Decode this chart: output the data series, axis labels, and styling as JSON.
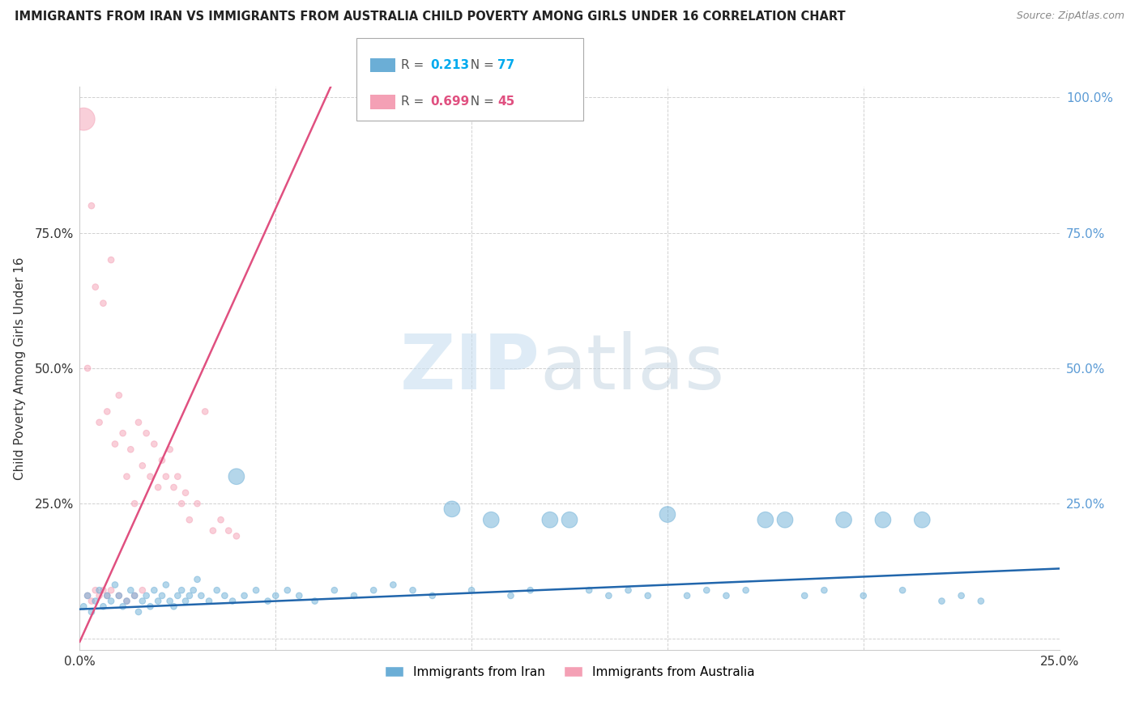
{
  "title": "IMMIGRANTS FROM IRAN VS IMMIGRANTS FROM AUSTRALIA CHILD POVERTY AMONG GIRLS UNDER 16 CORRELATION CHART",
  "source": "Source: ZipAtlas.com",
  "ylabel": "Child Poverty Among Girls Under 16",
  "xlim": [
    0.0,
    0.25
  ],
  "ylim": [
    0.0,
    1.0
  ],
  "iran_color": "#6baed6",
  "iran_edge_color": "#4292c6",
  "australia_color": "#f4a0b5",
  "australia_edge_color": "#e05080",
  "trend_iran_color": "#2166ac",
  "trend_aus_color": "#e05080",
  "iran_R": 0.213,
  "iran_N": 77,
  "australia_R": 0.699,
  "australia_N": 45,
  "watermark_zip": "ZIP",
  "watermark_atlas": "atlas",
  "background_color": "#ffffff",
  "iran_points": [
    [
      0.001,
      0.06
    ],
    [
      0.002,
      0.08
    ],
    [
      0.003,
      0.05
    ],
    [
      0.004,
      0.07
    ],
    [
      0.005,
      0.09
    ],
    [
      0.006,
      0.06
    ],
    [
      0.007,
      0.08
    ],
    [
      0.008,
      0.07
    ],
    [
      0.009,
      0.1
    ],
    [
      0.01,
      0.08
    ],
    [
      0.011,
      0.06
    ],
    [
      0.012,
      0.07
    ],
    [
      0.013,
      0.09
    ],
    [
      0.014,
      0.08
    ],
    [
      0.015,
      0.05
    ],
    [
      0.016,
      0.07
    ],
    [
      0.017,
      0.08
    ],
    [
      0.018,
      0.06
    ],
    [
      0.019,
      0.09
    ],
    [
      0.02,
      0.07
    ],
    [
      0.021,
      0.08
    ],
    [
      0.022,
      0.1
    ],
    [
      0.023,
      0.07
    ],
    [
      0.024,
      0.06
    ],
    [
      0.025,
      0.08
    ],
    [
      0.026,
      0.09
    ],
    [
      0.027,
      0.07
    ],
    [
      0.028,
      0.08
    ],
    [
      0.029,
      0.09
    ],
    [
      0.03,
      0.11
    ],
    [
      0.031,
      0.08
    ],
    [
      0.033,
      0.07
    ],
    [
      0.035,
      0.09
    ],
    [
      0.037,
      0.08
    ],
    [
      0.039,
      0.07
    ],
    [
      0.04,
      0.3
    ],
    [
      0.042,
      0.08
    ],
    [
      0.045,
      0.09
    ],
    [
      0.048,
      0.07
    ],
    [
      0.05,
      0.08
    ],
    [
      0.053,
      0.09
    ],
    [
      0.056,
      0.08
    ],
    [
      0.06,
      0.07
    ],
    [
      0.065,
      0.09
    ],
    [
      0.07,
      0.08
    ],
    [
      0.075,
      0.09
    ],
    [
      0.08,
      0.1
    ],
    [
      0.085,
      0.09
    ],
    [
      0.09,
      0.08
    ],
    [
      0.095,
      0.24
    ],
    [
      0.1,
      0.09
    ],
    [
      0.105,
      0.22
    ],
    [
      0.11,
      0.08
    ],
    [
      0.115,
      0.09
    ],
    [
      0.12,
      0.22
    ],
    [
      0.125,
      0.22
    ],
    [
      0.13,
      0.09
    ],
    [
      0.135,
      0.08
    ],
    [
      0.14,
      0.09
    ],
    [
      0.145,
      0.08
    ],
    [
      0.15,
      0.23
    ],
    [
      0.155,
      0.08
    ],
    [
      0.16,
      0.09
    ],
    [
      0.165,
      0.08
    ],
    [
      0.17,
      0.09
    ],
    [
      0.175,
      0.22
    ],
    [
      0.18,
      0.22
    ],
    [
      0.185,
      0.08
    ],
    [
      0.19,
      0.09
    ],
    [
      0.195,
      0.22
    ],
    [
      0.2,
      0.08
    ],
    [
      0.205,
      0.22
    ],
    [
      0.21,
      0.09
    ],
    [
      0.215,
      0.22
    ],
    [
      0.22,
      0.07
    ],
    [
      0.225,
      0.08
    ],
    [
      0.23,
      0.07
    ]
  ],
  "iran_sizes": [
    30,
    30,
    30,
    30,
    30,
    30,
    30,
    30,
    30,
    30,
    30,
    30,
    30,
    30,
    30,
    30,
    30,
    30,
    30,
    30,
    30,
    30,
    30,
    30,
    30,
    30,
    30,
    30,
    30,
    30,
    30,
    30,
    30,
    30,
    30,
    200,
    30,
    30,
    30,
    30,
    30,
    30,
    30,
    30,
    30,
    30,
    30,
    30,
    30,
    200,
    30,
    200,
    30,
    30,
    200,
    200,
    30,
    30,
    30,
    30,
    200,
    30,
    30,
    30,
    30,
    200,
    200,
    30,
    30,
    200,
    30,
    200,
    30,
    200,
    30,
    30,
    30
  ],
  "aus_points": [
    [
      0.002,
      0.5
    ],
    [
      0.003,
      0.8
    ],
    [
      0.004,
      0.65
    ],
    [
      0.005,
      0.4
    ],
    [
      0.006,
      0.62
    ],
    [
      0.007,
      0.42
    ],
    [
      0.008,
      0.7
    ],
    [
      0.009,
      0.36
    ],
    [
      0.01,
      0.45
    ],
    [
      0.011,
      0.38
    ],
    [
      0.012,
      0.3
    ],
    [
      0.013,
      0.35
    ],
    [
      0.014,
      0.25
    ],
    [
      0.015,
      0.4
    ],
    [
      0.016,
      0.32
    ],
    [
      0.017,
      0.38
    ],
    [
      0.018,
      0.3
    ],
    [
      0.019,
      0.36
    ],
    [
      0.02,
      0.28
    ],
    [
      0.021,
      0.33
    ],
    [
      0.022,
      0.3
    ],
    [
      0.023,
      0.35
    ],
    [
      0.024,
      0.28
    ],
    [
      0.025,
      0.3
    ],
    [
      0.026,
      0.25
    ],
    [
      0.027,
      0.27
    ],
    [
      0.028,
      0.22
    ],
    [
      0.03,
      0.25
    ],
    [
      0.032,
      0.42
    ],
    [
      0.034,
      0.2
    ],
    [
      0.036,
      0.22
    ],
    [
      0.038,
      0.2
    ],
    [
      0.04,
      0.19
    ],
    [
      0.002,
      0.08
    ],
    [
      0.003,
      0.07
    ],
    [
      0.004,
      0.09
    ],
    [
      0.005,
      0.08
    ],
    [
      0.006,
      0.09
    ],
    [
      0.007,
      0.08
    ],
    [
      0.008,
      0.09
    ],
    [
      0.01,
      0.08
    ],
    [
      0.012,
      0.07
    ],
    [
      0.014,
      0.08
    ],
    [
      0.016,
      0.09
    ],
    [
      0.001,
      0.96
    ]
  ],
  "aus_sizes": [
    30,
    30,
    30,
    30,
    30,
    30,
    30,
    30,
    30,
    30,
    30,
    30,
    30,
    30,
    30,
    30,
    30,
    30,
    30,
    30,
    30,
    30,
    30,
    30,
    30,
    30,
    30,
    30,
    30,
    30,
    30,
    30,
    30,
    30,
    30,
    30,
    30,
    30,
    30,
    30,
    30,
    30,
    30,
    30,
    400
  ]
}
